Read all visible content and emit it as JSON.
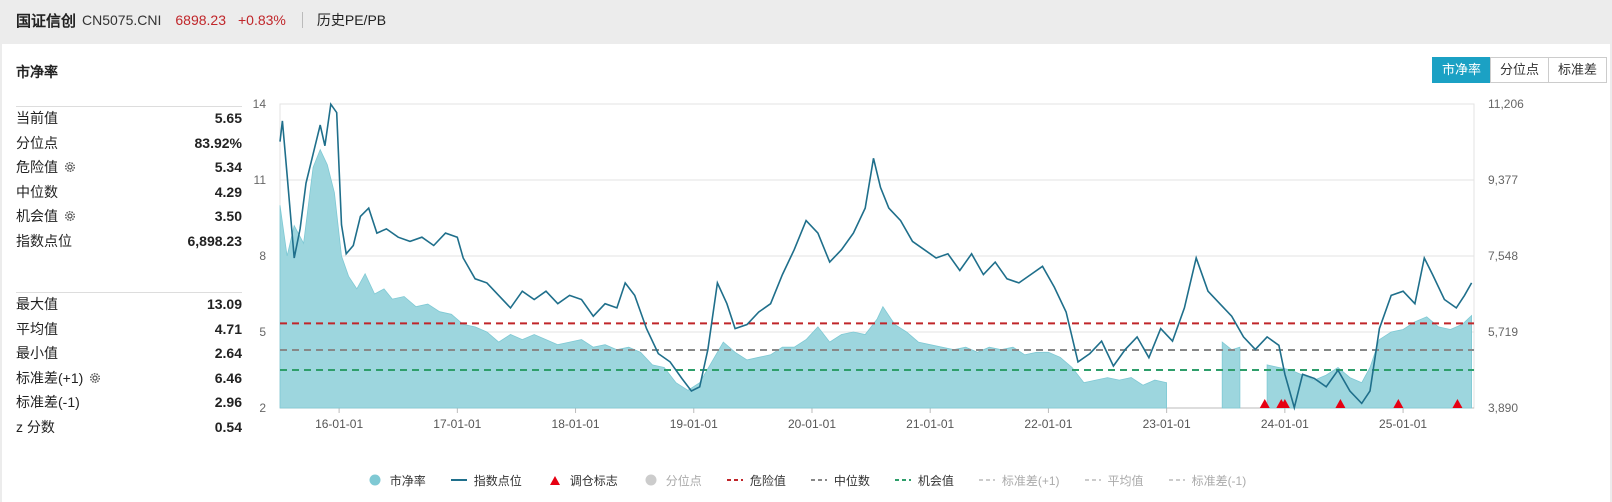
{
  "header": {
    "name": "国证信创",
    "code": "CN5075.CNI",
    "price": "6898.23",
    "change": "+0.83%",
    "history_label": "历史PE/PB"
  },
  "panel": {
    "title": "市净率",
    "tabs": [
      {
        "label": "市净率",
        "active": true
      },
      {
        "label": "分位点",
        "active": false
      },
      {
        "label": "标准差",
        "active": false
      }
    ]
  },
  "stats_top": [
    {
      "label": "当前值",
      "value": "5.65",
      "gear": false
    },
    {
      "label": "分位点",
      "value": "83.92%",
      "gear": false
    },
    {
      "label": "危险值",
      "value": "5.34",
      "gear": true
    },
    {
      "label": "中位数",
      "value": "4.29",
      "gear": false
    },
    {
      "label": "机会值",
      "value": "3.50",
      "gear": true
    },
    {
      "label": "指数点位",
      "value": "6,898.23",
      "gear": false
    }
  ],
  "stats_bottom": [
    {
      "label": "最大值",
      "value": "13.09",
      "gear": false
    },
    {
      "label": "平均值",
      "value": "4.71",
      "gear": false
    },
    {
      "label": "最小值",
      "value": "2.64",
      "gear": false
    },
    {
      "label": "标准差(+1)",
      "value": "6.46",
      "gear": true
    },
    {
      "label": "标准差(-1)",
      "value": "2.96",
      "gear": false
    },
    {
      "label": "z 分数",
      "value": "0.54",
      "gear": false
    }
  ],
  "colors": {
    "pb_fill": "#9dd6de",
    "index_line": "#1f6f8b",
    "danger": "#c0262a",
    "median": "#888888",
    "opportunity": "#2e9e6a",
    "marker": "#e60012",
    "active_tab": "#1ba1c4"
  },
  "chart_data": {
    "type": "area",
    "title": "",
    "x_ticks": [
      "16-01-01",
      "17-01-01",
      "18-01-01",
      "19-01-01",
      "20-01-01",
      "21-01-01",
      "22-01-01",
      "23-01-01",
      "24-01-01",
      "25-01-01"
    ],
    "y_left_ticks": [
      "2",
      "5",
      "8",
      "11",
      "14"
    ],
    "y_left_range": [
      2,
      14
    ],
    "y_right_ticks": [
      "3,890",
      "5,719",
      "7,548",
      "9,377",
      "11,206"
    ],
    "y_right_range": [
      3890,
      11206
    ],
    "x_range": [
      2015.5,
      2025.6
    ],
    "reference_lines": [
      {
        "name": "危险值",
        "value": 5.34,
        "style": "dashed",
        "color": "#c0262a"
      },
      {
        "name": "中位数",
        "value": 4.29,
        "style": "dashed",
        "color": "#888888"
      },
      {
        "name": "机会值",
        "value": 3.5,
        "style": "dashed",
        "color": "#2e9e6a"
      }
    ],
    "series": [
      {
        "name": "市净率",
        "kind": "area",
        "points": [
          [
            2015.5,
            10.0
          ],
          [
            2015.56,
            8.0
          ],
          [
            2015.62,
            9.2
          ],
          [
            2015.7,
            8.5
          ],
          [
            2015.78,
            11.5
          ],
          [
            2015.84,
            12.2
          ],
          [
            2015.9,
            11.6
          ],
          [
            2015.96,
            10.5
          ],
          [
            2016.02,
            8.0
          ],
          [
            2016.08,
            7.2
          ],
          [
            2016.15,
            6.7
          ],
          [
            2016.22,
            7.3
          ],
          [
            2016.3,
            6.5
          ],
          [
            2016.38,
            6.7
          ],
          [
            2016.45,
            6.3
          ],
          [
            2016.55,
            6.4
          ],
          [
            2016.65,
            6.0
          ],
          [
            2016.75,
            6.1
          ],
          [
            2016.85,
            5.8
          ],
          [
            2016.95,
            5.7
          ],
          [
            2017.05,
            5.3
          ],
          [
            2017.15,
            5.2
          ],
          [
            2017.25,
            5.0
          ],
          [
            2017.35,
            4.6
          ],
          [
            2017.45,
            4.9
          ],
          [
            2017.55,
            4.7
          ],
          [
            2017.65,
            4.9
          ],
          [
            2017.75,
            4.7
          ],
          [
            2017.85,
            4.5
          ],
          [
            2017.95,
            4.6
          ],
          [
            2018.05,
            4.7
          ],
          [
            2018.15,
            4.4
          ],
          [
            2018.25,
            4.5
          ],
          [
            2018.35,
            4.3
          ],
          [
            2018.45,
            4.4
          ],
          [
            2018.55,
            4.2
          ],
          [
            2018.65,
            3.7
          ],
          [
            2018.75,
            3.6
          ],
          [
            2018.85,
            3.0
          ],
          [
            2018.95,
            2.7
          ],
          [
            2019.05,
            3.0
          ],
          [
            2019.15,
            3.8
          ],
          [
            2019.25,
            4.6
          ],
          [
            2019.35,
            4.2
          ],
          [
            2019.45,
            3.9
          ],
          [
            2019.55,
            4.0
          ],
          [
            2019.65,
            4.1
          ],
          [
            2019.75,
            4.4
          ],
          [
            2019.85,
            4.4
          ],
          [
            2019.95,
            4.7
          ],
          [
            2020.05,
            5.2
          ],
          [
            2020.15,
            4.6
          ],
          [
            2020.25,
            4.9
          ],
          [
            2020.35,
            5.0
          ],
          [
            2020.45,
            4.9
          ],
          [
            2020.55,
            5.5
          ],
          [
            2020.6,
            6.0
          ],
          [
            2020.7,
            5.3
          ],
          [
            2020.8,
            5.0
          ],
          [
            2020.9,
            4.6
          ],
          [
            2021.0,
            4.5
          ],
          [
            2021.1,
            4.4
          ],
          [
            2021.2,
            4.3
          ],
          [
            2021.3,
            4.4
          ],
          [
            2021.4,
            4.2
          ],
          [
            2021.5,
            4.4
          ],
          [
            2021.6,
            4.3
          ],
          [
            2021.7,
            4.4
          ],
          [
            2021.8,
            4.1
          ],
          [
            2021.9,
            4.2
          ],
          [
            2022.0,
            4.2
          ],
          [
            2022.1,
            4.0
          ],
          [
            2022.2,
            3.6
          ],
          [
            2022.3,
            3.0
          ],
          [
            2022.4,
            3.1
          ],
          [
            2022.5,
            3.2
          ],
          [
            2022.6,
            3.1
          ],
          [
            2022.7,
            3.2
          ],
          [
            2022.8,
            2.9
          ],
          [
            2022.9,
            3.1
          ],
          [
            2023.0,
            3.0
          ]
        ]
      },
      {
        "name": "市净率",
        "kind": "area",
        "points": [
          [
            2023.47,
            4.6
          ],
          [
            2023.55,
            4.3
          ],
          [
            2023.62,
            4.4
          ]
        ]
      },
      {
        "name": "市净率",
        "kind": "area",
        "points": [
          [
            2023.85,
            3.7
          ],
          [
            2023.95,
            3.6
          ],
          [
            2024.05,
            3.5
          ],
          [
            2024.15,
            3.3
          ],
          [
            2024.25,
            3.1
          ],
          [
            2024.35,
            3.3
          ],
          [
            2024.45,
            3.6
          ],
          [
            2024.55,
            3.2
          ],
          [
            2024.65,
            3.0
          ],
          [
            2024.72,
            3.6
          ],
          [
            2024.8,
            4.7
          ],
          [
            2024.9,
            5.0
          ],
          [
            2025.0,
            5.1
          ],
          [
            2025.1,
            5.4
          ],
          [
            2025.2,
            5.6
          ],
          [
            2025.3,
            5.2
          ],
          [
            2025.4,
            5.1
          ],
          [
            2025.5,
            5.3
          ],
          [
            2025.58,
            5.65
          ]
        ]
      },
      {
        "name": "指数点位",
        "kind": "line",
        "points": [
          [
            2015.5,
            10300
          ],
          [
            2015.52,
            10800
          ],
          [
            2015.56,
            9500
          ],
          [
            2015.62,
            7500
          ],
          [
            2015.67,
            8200
          ],
          [
            2015.72,
            9300
          ],
          [
            2015.78,
            10000
          ],
          [
            2015.84,
            10700
          ],
          [
            2015.88,
            10200
          ],
          [
            2015.93,
            11200
          ],
          [
            2015.98,
            11000
          ],
          [
            2016.02,
            8300
          ],
          [
            2016.06,
            7600
          ],
          [
            2016.12,
            7800
          ],
          [
            2016.18,
            8500
          ],
          [
            2016.25,
            8700
          ],
          [
            2016.32,
            8100
          ],
          [
            2016.4,
            8200
          ],
          [
            2016.5,
            8000
          ],
          [
            2016.6,
            7900
          ],
          [
            2016.7,
            8000
          ],
          [
            2016.8,
            7800
          ],
          [
            2016.9,
            8100
          ],
          [
            2017.0,
            8000
          ],
          [
            2017.05,
            7500
          ],
          [
            2017.15,
            7000
          ],
          [
            2017.25,
            6900
          ],
          [
            2017.35,
            6600
          ],
          [
            2017.45,
            6300
          ],
          [
            2017.55,
            6700
          ],
          [
            2017.65,
            6500
          ],
          [
            2017.75,
            6700
          ],
          [
            2017.85,
            6400
          ],
          [
            2017.95,
            6600
          ],
          [
            2018.05,
            6500
          ],
          [
            2018.15,
            6100
          ],
          [
            2018.25,
            6400
          ],
          [
            2018.35,
            6300
          ],
          [
            2018.42,
            6900
          ],
          [
            2018.5,
            6600
          ],
          [
            2018.6,
            5800
          ],
          [
            2018.7,
            5200
          ],
          [
            2018.8,
            5000
          ],
          [
            2018.9,
            4600
          ],
          [
            2018.98,
            4300
          ],
          [
            2019.05,
            4400
          ],
          [
            2019.12,
            5300
          ],
          [
            2019.2,
            6900
          ],
          [
            2019.28,
            6400
          ],
          [
            2019.35,
            5800
          ],
          [
            2019.45,
            5900
          ],
          [
            2019.55,
            6200
          ],
          [
            2019.65,
            6400
          ],
          [
            2019.75,
            7100
          ],
          [
            2019.85,
            7700
          ],
          [
            2019.95,
            8400
          ],
          [
            2020.05,
            8100
          ],
          [
            2020.15,
            7400
          ],
          [
            2020.25,
            7700
          ],
          [
            2020.35,
            8100
          ],
          [
            2020.45,
            8700
          ],
          [
            2020.52,
            9900
          ],
          [
            2020.58,
            9200
          ],
          [
            2020.65,
            8700
          ],
          [
            2020.75,
            8400
          ],
          [
            2020.85,
            7900
          ],
          [
            2020.95,
            7700
          ],
          [
            2021.05,
            7500
          ],
          [
            2021.15,
            7600
          ],
          [
            2021.25,
            7200
          ],
          [
            2021.35,
            7600
          ],
          [
            2021.45,
            7100
          ],
          [
            2021.55,
            7400
          ],
          [
            2021.65,
            7000
          ],
          [
            2021.75,
            6900
          ],
          [
            2021.85,
            7100
          ],
          [
            2021.95,
            7300
          ],
          [
            2022.05,
            6800
          ],
          [
            2022.15,
            6200
          ],
          [
            2022.25,
            5000
          ],
          [
            2022.35,
            5200
          ],
          [
            2022.45,
            5500
          ],
          [
            2022.55,
            4900
          ],
          [
            2022.65,
            5300
          ],
          [
            2022.75,
            5600
          ],
          [
            2022.85,
            5100
          ],
          [
            2022.95,
            5800
          ],
          [
            2023.05,
            5500
          ],
          [
            2023.15,
            6300
          ],
          [
            2023.25,
            7500
          ],
          [
            2023.35,
            6700
          ],
          [
            2023.45,
            6400
          ],
          [
            2023.55,
            6100
          ],
          [
            2023.65,
            5600
          ],
          [
            2023.75,
            5300
          ],
          [
            2023.85,
            5600
          ],
          [
            2023.95,
            5400
          ],
          [
            2024.0,
            4700
          ],
          [
            2024.08,
            3900
          ],
          [
            2024.15,
            4700
          ],
          [
            2024.25,
            4600
          ],
          [
            2024.35,
            4400
          ],
          [
            2024.45,
            4800
          ],
          [
            2024.55,
            4300
          ],
          [
            2024.65,
            4000
          ],
          [
            2024.72,
            4300
          ],
          [
            2024.8,
            5800
          ],
          [
            2024.9,
            6600
          ],
          [
            2025.0,
            6700
          ],
          [
            2025.1,
            6400
          ],
          [
            2025.18,
            7500
          ],
          [
            2025.25,
            7100
          ],
          [
            2025.35,
            6500
          ],
          [
            2025.45,
            6300
          ],
          [
            2025.52,
            6600
          ],
          [
            2025.58,
            6900
          ]
        ]
      }
    ],
    "markers": {
      "name": "调仓标志",
      "x": [
        2023.83,
        2023.97,
        2024.0,
        2024.47,
        2024.96,
        2025.46
      ]
    }
  },
  "legend": [
    {
      "label": "市净率",
      "swatch": "circle",
      "color": "#7fc9d4",
      "on": true
    },
    {
      "label": "指数点位",
      "swatch": "line",
      "color": "#1f6f8b",
      "on": true
    },
    {
      "label": "调仓标志",
      "swatch": "triangle",
      "color": "#e60012",
      "on": true
    },
    {
      "label": "分位点",
      "swatch": "circle",
      "color": "#cccccc",
      "on": false
    },
    {
      "label": "危险值",
      "swatch": "dash",
      "color": "#c0262a",
      "on": true
    },
    {
      "label": "中位数",
      "swatch": "dash",
      "color": "#888888",
      "on": true
    },
    {
      "label": "机会值",
      "swatch": "dash",
      "color": "#2e9e6a",
      "on": true
    },
    {
      "label": "标准差(+1)",
      "swatch": "dash",
      "color": "#cccccc",
      "on": false
    },
    {
      "label": "平均值",
      "swatch": "dash",
      "color": "#cccccc",
      "on": false
    },
    {
      "label": "标准差(-1)",
      "swatch": "dash",
      "color": "#cccccc",
      "on": false
    }
  ]
}
